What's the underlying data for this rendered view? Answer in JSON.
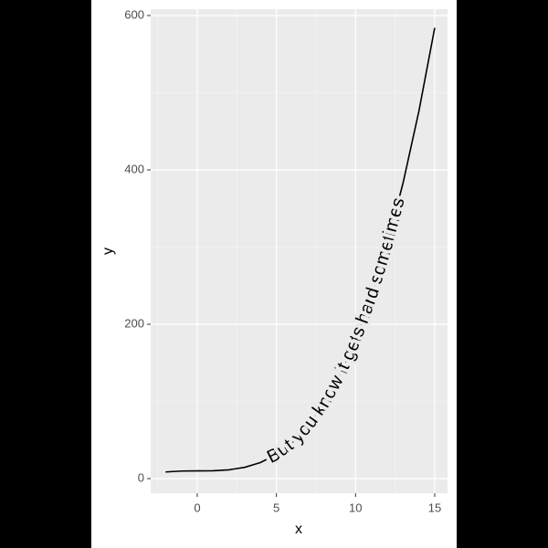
{
  "chart_data": {
    "type": "line",
    "x_label": "x",
    "y_label": "y",
    "label": "But you know it gets hard sometimes",
    "x": [
      -2,
      -1,
      0,
      1,
      2,
      3,
      4,
      5,
      6,
      7,
      8,
      9,
      10,
      11,
      12,
      13,
      14,
      15
    ],
    "values": [
      8.6,
      9.8,
      10,
      10.2,
      11.4,
      14.6,
      20.9,
      31.3,
      46.7,
      68.3,
      97,
      134,
      180,
      236,
      304,
      383,
      476,
      584
    ],
    "color": "#000000",
    "xlim": [
      -2.94,
      15.81
    ],
    "xticks": [
      0,
      5,
      10,
      15
    ],
    "ylim": [
      -18.9,
      608.3
    ],
    "yticks": [
      0,
      200,
      400,
      600
    ],
    "grid": true
  }
}
